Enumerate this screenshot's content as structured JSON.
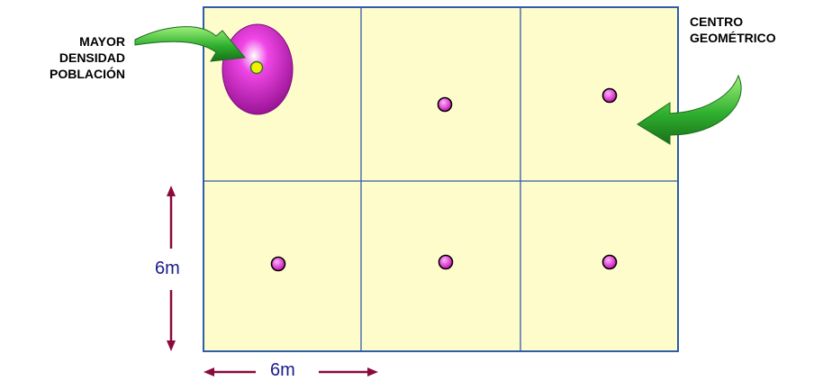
{
  "labels": {
    "left": "MAYOR\nDENSIDAD\nPOBLACIÓN",
    "right": "CENTRO\nGEOMÉTRICO"
  },
  "dimensions": {
    "vertical": "6m",
    "horizontal": "6m"
  },
  "grid": {
    "rows": 2,
    "cols": 3
  },
  "colors": {
    "cell_fill": "#fffccc",
    "grid_line": "#2f5da8",
    "dot": "#e020c8",
    "dot_outline": "#000000",
    "density_blob": "#c020c0",
    "density_center": "#f0f000",
    "dimension_arrow": "#8b0a3c",
    "curved_arrow": "#2ea62e"
  },
  "icons": {
    "left_arrow": "curved-arrow-right-icon",
    "right_arrow": "curved-arrow-left-icon"
  }
}
